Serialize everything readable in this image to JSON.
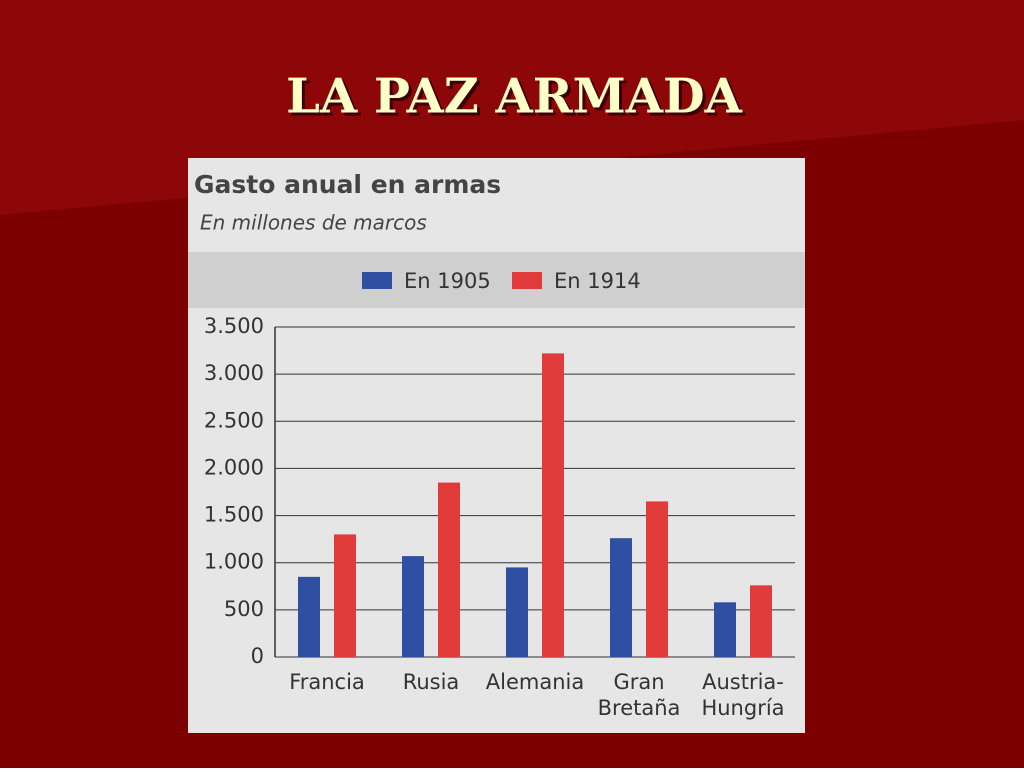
{
  "slide_title": "LA PAZ ARMADA",
  "chart_data": {
    "type": "bar",
    "title": "Gasto anual en armas",
    "subtitle": "En millones de marcos",
    "categories": [
      [
        "Francia"
      ],
      [
        "Rusia"
      ],
      [
        "Alemania"
      ],
      [
        "Gran",
        "Bretaña"
      ],
      [
        "Austria-",
        "Hungría"
      ]
    ],
    "series": [
      {
        "name": "En 1905",
        "color": "#2f4fa3",
        "values": [
          850,
          1070,
          950,
          1260,
          580
        ]
      },
      {
        "name": "En 1914",
        "color": "#e03a3a",
        "values": [
          1300,
          1850,
          3220,
          1650,
          760
        ]
      }
    ],
    "ylim": [
      0,
      3500
    ],
    "yticks": [
      0,
      500,
      {
        "value": 1000,
        "label": "1.000"
      },
      {
        "value": 1500,
        "label": "1.500"
      },
      {
        "value": 2000,
        "label": "2.000"
      },
      {
        "value": 2500,
        "label": "2.500"
      },
      {
        "value": 3000,
        "label": "3.000"
      },
      {
        "value": 3500,
        "label": "3.500"
      }
    ],
    "grid": true,
    "legend": "top"
  }
}
